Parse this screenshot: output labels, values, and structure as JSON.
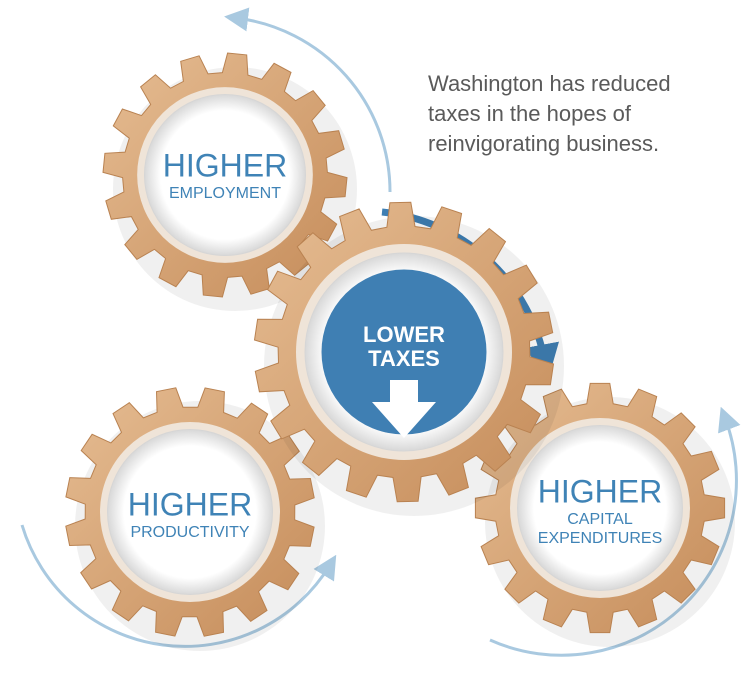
{
  "caption": [
    "Washington has reduced",
    "taxes in the hopes of",
    "reinvigorating business."
  ],
  "gears": [
    {
      "title": "HIGHER",
      "subtitle": [
        "EMPLOYMENT"
      ]
    },
    {
      "title": "HIGHER",
      "subtitle": [
        "PRODUCTIVITY"
      ]
    },
    {
      "title": "HIGHER",
      "subtitle": [
        "CAPITAL",
        "EXPENDITURES"
      ]
    }
  ],
  "center_gear": {
    "lines": [
      "LOWER",
      "TAXES"
    ]
  }
}
